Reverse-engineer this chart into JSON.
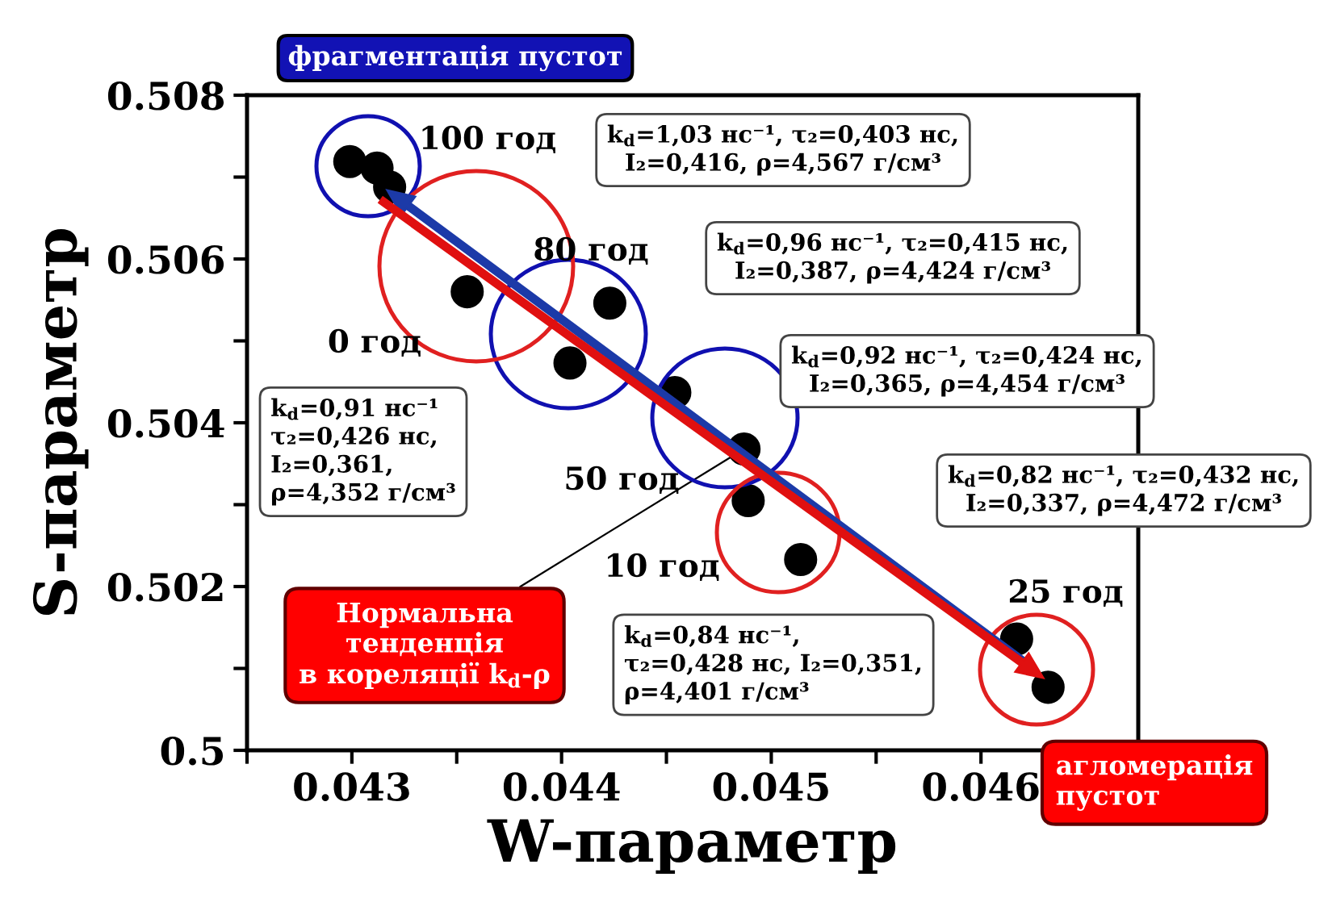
{
  "chart_data": {
    "type": "scatter",
    "xlabel": "W-параметр",
    "ylabel": "S-параметр",
    "x": [
      0.04299,
      0.04312,
      0.04318,
      0.04355,
      0.04423,
      0.04404,
      0.04454,
      0.04487,
      0.04489,
      0.04514,
      0.04617,
      0.04632
    ],
    "series": [
      {
        "color": "#000000",
        "values": [
          0.50719,
          0.50711,
          0.50688,
          0.5056,
          0.50546,
          0.50473,
          0.50437,
          0.50368,
          0.50305,
          0.50233,
          0.50136,
          0.50077
        ]
      }
    ],
    "marker": "circle",
    "grid": false,
    "legend": false,
    "xlim": [
      0.0425,
      0.04675
    ],
    "xticks": [
      {
        "value": 0.0425,
        "label": null
      },
      0.043,
      {
        "value": 0.0435,
        "label": null
      },
      0.044,
      {
        "value": 0.0445,
        "label": null
      },
      0.045,
      {
        "value": 0.0455,
        "label": null
      },
      0.046,
      {
        "value": 0.0465,
        "label": null
      }
    ],
    "ylim": [
      0.5,
      0.508
    ],
    "yticks": [
      0.5,
      {
        "value": 0.501,
        "label": null
      },
      0.502,
      {
        "value": 0.503,
        "label": null
      },
      0.504,
      {
        "value": 0.505,
        "label": null
      },
      0.506,
      {
        "value": 0.507,
        "label": null
      },
      0.508
    ],
    "annotations": [
      "фрагментація пустот",
      "100 год",
      "80 год",
      "0 год",
      "50 год",
      "10 год",
      "25 год",
      "k$_{d}$=1,03 нс⁻¹, τ₂=0,403 нс,\nI₂=0,416, ρ=4,567 г/см³",
      "k$_{d}$=0,96 нс⁻¹, τ₂=0,415 нс,\nI₂=0,387, ρ=4,424 г/см³",
      "k$_{d}$=0,92 нс⁻¹, τ₂=0,424 нс,\nI₂=0,365, ρ=4,454 г/см³",
      "k$_{d}$=0,82 нс⁻¹, τ₂=0,432 нс,\nI₂=0,337, ρ=4,472 г/см³",
      "k$_{d}$=0,91 нс⁻¹\nτ₂=0,426 нс,\nI₂=0,361,\nρ=4,352 г/см³",
      "k$_{d}$=0,84 нс⁻¹,\nτ₂=0,428 нс, I₂=0,351,\nρ=4,401 г/см³",
      {
        "text": "Нормальна\nтенденція\nв кореляції k$_{d}$-ρ",
        "x": 0.04487,
        "y": 0.50368
      },
      "агломерація\nпустот"
    ]
  }
}
